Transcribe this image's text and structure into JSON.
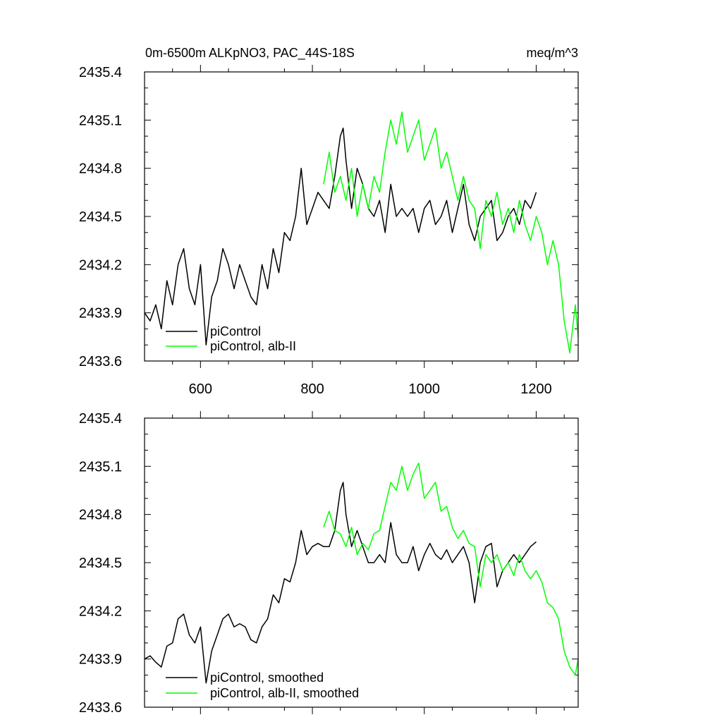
{
  "chart_data": [
    {
      "type": "line",
      "title_left": "0m-6500m ALKpNO3, PAC_44S-18S",
      "title_right": "meq/m^3",
      "xlim": [
        500,
        1275
      ],
      "ylim": [
        2433.6,
        2435.4
      ],
      "xticks": [
        600,
        800,
        1000,
        1200
      ],
      "xtick_labels": [
        "600",
        "800",
        "1000",
        "1200"
      ],
      "yticks": [
        2433.6,
        2433.9,
        2434.2,
        2434.5,
        2434.8,
        2435.1,
        2435.4
      ],
      "ytick_labels": [
        "2433.6",
        "2433.9",
        "2434.2",
        "2434.5",
        "2434.8",
        "2435.1",
        "2435.4"
      ],
      "legend": "bottom-left",
      "series": [
        {
          "name": "piControl",
          "color": "#000000",
          "x": [
            500,
            510,
            520,
            530,
            540,
            550,
            560,
            570,
            580,
            590,
            600,
            610,
            620,
            630,
            640,
            650,
            660,
            670,
            680,
            690,
            700,
            710,
            720,
            730,
            740,
            750,
            760,
            770,
            780,
            790,
            800,
            810,
            820,
            830,
            840,
            850,
            855,
            860,
            870,
            880,
            890,
            900,
            910,
            920,
            930,
            940,
            950,
            960,
            970,
            980,
            990,
            1000,
            1010,
            1020,
            1030,
            1040,
            1050,
            1060,
            1070,
            1080,
            1090,
            1100,
            1110,
            1120,
            1130,
            1140,
            1150,
            1160,
            1170,
            1180,
            1190,
            1200
          ],
          "y": [
            2433.9,
            2433.85,
            2433.95,
            2433.8,
            2434.1,
            2433.95,
            2434.2,
            2434.3,
            2434.05,
            2433.95,
            2434.2,
            2433.7,
            2434.0,
            2434.1,
            2434.3,
            2434.2,
            2434.05,
            2434.2,
            2434.1,
            2434.0,
            2433.95,
            2434.2,
            2434.05,
            2434.3,
            2434.15,
            2434.4,
            2434.35,
            2434.5,
            2434.8,
            2434.45,
            2434.55,
            2434.65,
            2434.6,
            2434.55,
            2434.75,
            2435.0,
            2435.05,
            2434.85,
            2434.55,
            2434.8,
            2434.7,
            2434.55,
            2434.5,
            2434.6,
            2434.4,
            2434.7,
            2434.5,
            2434.55,
            2434.5,
            2434.55,
            2434.4,
            2434.55,
            2434.6,
            2434.45,
            2434.5,
            2434.6,
            2434.4,
            2434.55,
            2434.7,
            2434.45,
            2434.35,
            2434.5,
            2434.55,
            2434.6,
            2434.35,
            2434.4,
            2434.5,
            2434.55,
            2434.45,
            2434.6,
            2434.55,
            2434.65
          ]
        },
        {
          "name": "piControl, alb-II",
          "color": "#00ff00",
          "x": [
            820,
            830,
            840,
            850,
            860,
            870,
            880,
            890,
            900,
            910,
            920,
            930,
            940,
            950,
            960,
            970,
            980,
            990,
            1000,
            1010,
            1020,
            1030,
            1040,
            1050,
            1060,
            1070,
            1080,
            1090,
            1100,
            1110,
            1120,
            1130,
            1140,
            1150,
            1160,
            1170,
            1180,
            1190,
            1200,
            1210,
            1220,
            1230,
            1240,
            1250,
            1260,
            1270,
            1275
          ],
          "y": [
            2434.7,
            2434.9,
            2434.65,
            2434.75,
            2434.6,
            2434.8,
            2434.5,
            2434.7,
            2434.55,
            2434.75,
            2434.65,
            2434.9,
            2435.1,
            2434.95,
            2435.15,
            2434.9,
            2435.0,
            2435.1,
            2434.85,
            2434.95,
            2435.05,
            2434.8,
            2434.9,
            2434.75,
            2434.6,
            2434.75,
            2434.6,
            2434.55,
            2434.3,
            2434.6,
            2434.5,
            2434.65,
            2434.45,
            2434.55,
            2434.4,
            2434.6,
            2434.45,
            2434.35,
            2434.5,
            2434.4,
            2434.2,
            2434.35,
            2434.2,
            2433.85,
            2433.65,
            2433.95,
            2433.75
          ]
        }
      ]
    },
    {
      "type": "line",
      "xlim": [
        500,
        1275
      ],
      "ylim": [
        2433.6,
        2435.4
      ],
      "xticks": [
        600,
        800,
        1000,
        1200
      ],
      "yticks": [
        2433.6,
        2433.9,
        2434.2,
        2434.5,
        2434.8,
        2435.1,
        2435.4
      ],
      "ytick_labels": [
        "2433.6",
        "2433.9",
        "2434.2",
        "2434.5",
        "2434.8",
        "2435.1",
        "2435.4"
      ],
      "legend": "bottom-left",
      "series": [
        {
          "name": "piControl, smoothed",
          "color": "#000000",
          "x": [
            500,
            510,
            520,
            530,
            540,
            550,
            560,
            570,
            580,
            590,
            600,
            610,
            620,
            630,
            640,
            650,
            660,
            670,
            680,
            690,
            700,
            710,
            720,
            730,
            740,
            750,
            760,
            770,
            780,
            790,
            800,
            810,
            820,
            830,
            840,
            850,
            855,
            860,
            870,
            880,
            890,
            900,
            910,
            920,
            930,
            940,
            950,
            960,
            970,
            980,
            990,
            1000,
            1010,
            1020,
            1030,
            1040,
            1050,
            1060,
            1070,
            1080,
            1090,
            1100,
            1110,
            1120,
            1130,
            1140,
            1150,
            1160,
            1170,
            1180,
            1190,
            1200
          ],
          "y": [
            2433.9,
            2433.92,
            2433.88,
            2433.85,
            2433.98,
            2434.0,
            2434.15,
            2434.18,
            2434.05,
            2434.0,
            2434.1,
            2433.75,
            2433.95,
            2434.05,
            2434.15,
            2434.18,
            2434.1,
            2434.12,
            2434.1,
            2434.02,
            2434.0,
            2434.1,
            2434.15,
            2434.3,
            2434.25,
            2434.4,
            2434.38,
            2434.5,
            2434.7,
            2434.55,
            2434.6,
            2434.62,
            2434.6,
            2434.6,
            2434.7,
            2434.95,
            2435.0,
            2434.8,
            2434.6,
            2434.7,
            2434.6,
            2434.5,
            2434.5,
            2434.55,
            2434.5,
            2434.75,
            2434.55,
            2434.5,
            2434.5,
            2434.6,
            2434.45,
            2434.55,
            2434.62,
            2434.55,
            2434.52,
            2434.58,
            2434.5,
            2434.55,
            2434.6,
            2434.5,
            2434.25,
            2434.5,
            2434.6,
            2434.62,
            2434.35,
            2434.45,
            2434.5,
            2434.55,
            2434.5,
            2434.55,
            2434.6,
            2434.63
          ]
        },
        {
          "name": "piControl, alb-II, smoothed",
          "color": "#00ff00",
          "x": [
            820,
            830,
            840,
            850,
            860,
            870,
            880,
            890,
            900,
            910,
            920,
            930,
            940,
            950,
            960,
            970,
            980,
            990,
            1000,
            1010,
            1020,
            1030,
            1040,
            1050,
            1060,
            1070,
            1080,
            1090,
            1100,
            1110,
            1120,
            1130,
            1140,
            1150,
            1160,
            1170,
            1180,
            1190,
            1200,
            1210,
            1220,
            1230,
            1240,
            1250,
            1260,
            1270,
            1275
          ],
          "y": [
            2434.72,
            2434.82,
            2434.7,
            2434.68,
            2434.6,
            2434.72,
            2434.55,
            2434.62,
            2434.58,
            2434.68,
            2434.7,
            2434.85,
            2435.0,
            2434.95,
            2435.1,
            2434.95,
            2435.05,
            2435.12,
            2434.9,
            2434.95,
            2435.0,
            2434.82,
            2434.85,
            2434.72,
            2434.65,
            2434.7,
            2434.62,
            2434.6,
            2434.35,
            2434.55,
            2434.5,
            2434.55,
            2434.45,
            2434.5,
            2434.42,
            2434.55,
            2434.45,
            2434.4,
            2434.45,
            2434.38,
            2434.25,
            2434.22,
            2434.15,
            2433.95,
            2433.85,
            2433.8,
            2433.9
          ]
        }
      ]
    }
  ]
}
